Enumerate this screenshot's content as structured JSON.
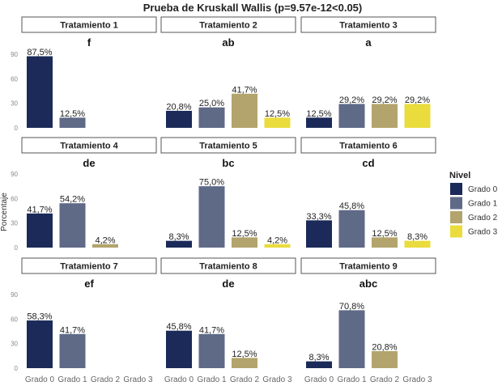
{
  "chart_data": {
    "type": "bar",
    "title": "Prueba de Kruskall Wallis (p=9.57e-12<0.05)",
    "ylabel": "Porcentaje",
    "xlabel": "",
    "ylim": [
      0,
      90
    ],
    "yticks": [
      0,
      30,
      60,
      90
    ],
    "categories": [
      "Grado 0",
      "Grado 1",
      "Grado 2",
      "Grado 3"
    ],
    "legend": {
      "title": "Nivel",
      "position": "right",
      "entries": [
        "Grado 0",
        "Grado 1",
        "Grado 2",
        "Grado 3"
      ]
    },
    "colors": [
      "#1b2a58",
      "#5f6a87",
      "#b2a46c",
      "#e9dc3c"
    ],
    "facets": [
      {
        "name": "Tratamiento 1",
        "group": "f",
        "values": [
          87.5,
          12.5,
          null,
          null
        ],
        "labels": [
          "87,5%",
          "12,5%",
          null,
          null
        ]
      },
      {
        "name": "Tratamiento 2",
        "group": "ab",
        "values": [
          20.8,
          25.0,
          41.7,
          12.5
        ],
        "labels": [
          "20,8%",
          "25,0%",
          "41,7%",
          "12,5%"
        ]
      },
      {
        "name": "Tratamiento 3",
        "group": "a",
        "values": [
          12.5,
          29.2,
          29.2,
          29.2
        ],
        "labels": [
          "12,5%",
          "29,2%",
          "29,2%",
          "29,2%"
        ]
      },
      {
        "name": "Tratamiento 4",
        "group": "de",
        "values": [
          41.7,
          54.2,
          4.2,
          null
        ],
        "labels": [
          "41,7%",
          "54,2%",
          "4,2%",
          null
        ]
      },
      {
        "name": "Tratamiento 5",
        "group": "bc",
        "values": [
          8.3,
          75.0,
          12.5,
          4.2
        ],
        "labels": [
          "8,3%",
          "75,0%",
          "12,5%",
          "4,2%"
        ]
      },
      {
        "name": "Tratamiento 6",
        "group": "cd",
        "values": [
          33.3,
          45.8,
          12.5,
          8.3
        ],
        "labels": [
          "33,3%",
          "45,8%",
          "12,5%",
          "8,3%"
        ]
      },
      {
        "name": "Tratamiento 7",
        "group": "ef",
        "values": [
          58.3,
          41.7,
          null,
          null
        ],
        "labels": [
          "58,3%",
          "41,7%",
          null,
          null
        ]
      },
      {
        "name": "Tratamiento 8",
        "group": "de",
        "values": [
          45.8,
          41.7,
          12.5,
          null
        ],
        "labels": [
          "45,8%",
          "41,7%",
          "12,5%",
          null
        ]
      },
      {
        "name": "Tratamiento 9",
        "group": "abc",
        "values": [
          8.3,
          70.8,
          20.8,
          null
        ],
        "labels": [
          "8,3%",
          "70,8%",
          "20,8%",
          null
        ]
      }
    ]
  }
}
